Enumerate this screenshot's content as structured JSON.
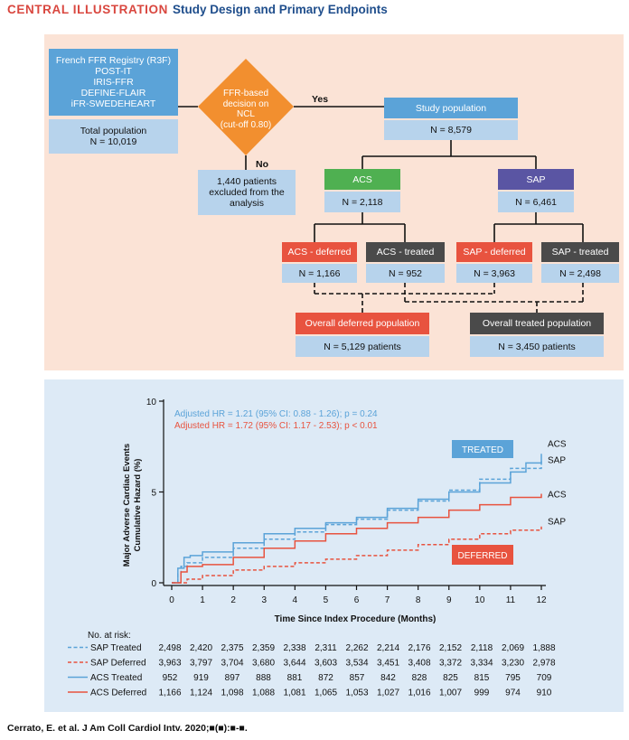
{
  "header": {
    "label": "CENTRAL ILLUSTRATION",
    "title": "Study Design and Primary Endpoints"
  },
  "flowchart": {
    "registries": [
      "French FFR Registry (R3F)",
      "POST-IT",
      "IRIS-FFR",
      "DEFINE-FLAIR",
      "iFR-SWEDEHEART"
    ],
    "total_population": {
      "label": "Total population",
      "value": "N = 10,019"
    },
    "decision": {
      "lines": [
        "FFR-based",
        "decision on",
        "NCL",
        "(cut-off 0.80)"
      ]
    },
    "yes_label": "Yes",
    "no_label": "No",
    "excluded": [
      "1,440 patients",
      "excluded from the",
      "analysis"
    ],
    "study_population": {
      "label": "Study population",
      "value": "N = 8,579"
    },
    "acs": {
      "label": "ACS",
      "value": "N = 2,118"
    },
    "sap": {
      "label": "SAP",
      "value": "N = 6,461"
    },
    "acs_deferred": {
      "label": "ACS - deferred",
      "value": "N = 1,166"
    },
    "acs_treated": {
      "label": "ACS - treated",
      "value": "N = 952"
    },
    "sap_deferred": {
      "label": "SAP - deferred",
      "value": "N = 3,963"
    },
    "sap_treated": {
      "label": "SAP - treated",
      "value": "N = 2,498"
    },
    "overall_deferred": {
      "label": "Overall deferred population",
      "value": "N = 5,129 patients"
    },
    "overall_treated": {
      "label": "Overall treated population",
      "value": "N = 3,450 patients"
    }
  },
  "chart_data": {
    "type": "line",
    "xlabel": "Time Since Index Procedure (Months)",
    "ylabel": [
      "Major Adverse Cardiac Events",
      "Cumulative Hazard (%)"
    ],
    "xlim": [
      0,
      12
    ],
    "ylim": [
      0,
      10
    ],
    "xticks": [
      0,
      1,
      2,
      3,
      4,
      5,
      6,
      7,
      8,
      9,
      10,
      11,
      12
    ],
    "yticks": [
      0,
      5,
      10
    ],
    "annotations": [
      {
        "text": "Adjusted HR = 1.21 (95% CI: 0.88 - 1.26); p = 0.24",
        "color": "#5ba3d8"
      },
      {
        "text": "Adjusted HR = 1.72 (95% CI: 1.17 - 2.53); p < 0.01",
        "color": "#e8533f"
      }
    ],
    "group_labels": {
      "treated": "TREATED",
      "deferred": "DEFERRED"
    },
    "series": [
      {
        "name": "SAP Treated",
        "end_label": "SAP",
        "color": "#5ba3d8",
        "style": "dashed",
        "x": [
          0,
          0.2,
          0.3,
          0.5,
          1,
          2,
          3,
          4,
          5,
          6,
          7,
          8,
          9,
          10,
          11,
          12
        ],
        "y": [
          0,
          0.5,
          0.9,
          1.1,
          1.4,
          1.9,
          2.4,
          2.8,
          3.2,
          3.5,
          4.0,
          4.5,
          5.1,
          5.7,
          6.3,
          6.8
        ]
      },
      {
        "name": "SAP Deferred",
        "end_label": "SAP",
        "color": "#e8533f",
        "style": "dashed",
        "x": [
          0,
          0.5,
          1,
          2,
          3,
          4,
          5,
          6,
          7,
          8,
          9,
          10,
          11,
          12
        ],
        "y": [
          0,
          0.2,
          0.4,
          0.7,
          0.9,
          1.1,
          1.3,
          1.5,
          1.8,
          2.1,
          2.4,
          2.7,
          2.9,
          3.1
        ]
      },
      {
        "name": "ACS Treated",
        "end_label": "ACS",
        "color": "#5ba3d8",
        "style": "solid",
        "x": [
          0,
          0.2,
          0.4,
          0.6,
          1,
          2,
          3,
          4,
          5,
          6,
          7,
          8,
          9,
          10,
          11,
          11.5,
          12
        ],
        "y": [
          0,
          0.8,
          1.4,
          1.5,
          1.7,
          2.2,
          2.7,
          3.0,
          3.3,
          3.6,
          4.1,
          4.6,
          5.0,
          5.5,
          6.1,
          6.6,
          7.1
        ]
      },
      {
        "name": "ACS Deferred",
        "end_label": "ACS",
        "color": "#e8533f",
        "style": "solid",
        "x": [
          0,
          0.3,
          0.5,
          1,
          2,
          3,
          4,
          5,
          6,
          7,
          8,
          9,
          10,
          11,
          12
        ],
        "y": [
          0,
          0.6,
          0.9,
          1.0,
          1.4,
          1.9,
          2.3,
          2.7,
          3.0,
          3.3,
          3.6,
          4.0,
          4.3,
          4.7,
          4.9
        ]
      }
    ],
    "risk_table": {
      "title": "No. at risk:",
      "rows": [
        {
          "name": "SAP Treated",
          "color": "#5ba3d8",
          "style": "dashed",
          "values": [
            "2,498",
            "2,420",
            "2,375",
            "2,359",
            "2,338",
            "2,311",
            "2,262",
            "2,214",
            "2,176",
            "2,152",
            "2,118",
            "2,069",
            "1,888"
          ]
        },
        {
          "name": "SAP Deferred",
          "color": "#e8533f",
          "style": "dashed",
          "values": [
            "3,963",
            "3,797",
            "3,704",
            "3,680",
            "3,644",
            "3,603",
            "3,534",
            "3,451",
            "3,408",
            "3,372",
            "3,334",
            "3,230",
            "2,978"
          ]
        },
        {
          "name": "ACS Treated",
          "color": "#5ba3d8",
          "style": "solid",
          "values": [
            "952",
            "919",
            "897",
            "888",
            "881",
            "872",
            "857",
            "842",
            "828",
            "825",
            "815",
            "795",
            "709"
          ]
        },
        {
          "name": "ACS Deferred",
          "color": "#e8533f",
          "style": "solid",
          "values": [
            "1,166",
            "1,124",
            "1,098",
            "1,088",
            "1,081",
            "1,065",
            "1,053",
            "1,027",
            "1,016",
            "1,007",
            "999",
            "974",
            "910"
          ]
        }
      ]
    }
  },
  "citation": "Cerrato, E. et al. J Am Coll Cardiol Intv. 2020;■(■):■-■."
}
